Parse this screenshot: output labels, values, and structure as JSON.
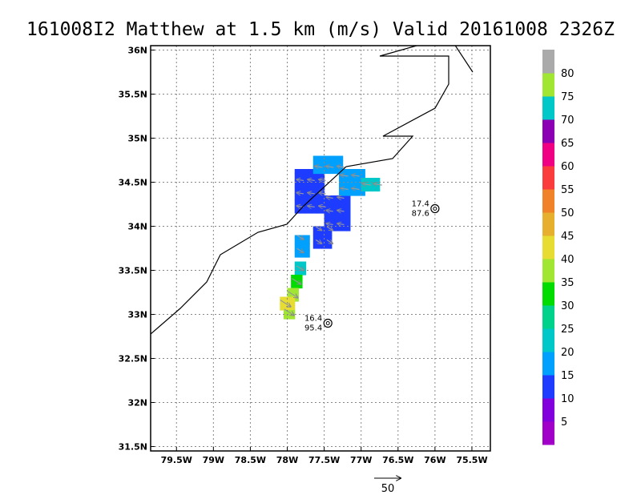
{
  "title": "161008I2 Matthew at 1.5 km (m/s) Valid 20161008 2326Z",
  "chart_data": {
    "type": "heatmap",
    "title": "161008I2 Matthew at 1.5 km (m/s) Valid 20161008 2326Z",
    "xlabel": "",
    "ylabel": "",
    "units": "m/s",
    "xlim": [
      -79.85,
      -75.25
    ],
    "ylim": [
      31.45,
      36.05
    ],
    "x_ticks": [
      -79.5,
      -79.0,
      -78.5,
      -78.0,
      -77.5,
      -77.0,
      -76.5,
      -76.0,
      -75.5
    ],
    "x_tick_labels": [
      "79.5W",
      "79W",
      "78.5W",
      "78W",
      "77.5W",
      "77W",
      "76.5W",
      "76W",
      "75.5W"
    ],
    "y_ticks": [
      31.5,
      32.0,
      32.5,
      33.0,
      33.5,
      34.0,
      34.5,
      35.0,
      35.5,
      36.0
    ],
    "y_tick_labels": [
      "31.5N",
      "32N",
      "32.5N",
      "33N",
      "33.5N",
      "34N",
      "34.5N",
      "35N",
      "35.5N",
      "36N"
    ],
    "grid": true,
    "colorbar": {
      "levels": [
        5,
        10,
        15,
        20,
        25,
        30,
        35,
        40,
        45,
        50,
        55,
        60,
        65,
        70,
        75,
        80
      ],
      "colors": [
        "#a000c8",
        "#8200dc",
        "#1e3cff",
        "#00a0ff",
        "#00c8c8",
        "#00d28c",
        "#00dc00",
        "#a0e632",
        "#e6dc32",
        "#e6af2d",
        "#f08228",
        "#fa3c3c",
        "#f00082",
        "#8c00b4",
        "#00c8c8",
        "#a0e632",
        "#aaaaaa"
      ],
      "labels": [
        "5",
        "10",
        "15",
        "20",
        "25",
        "30",
        "35",
        "40",
        "45",
        "50",
        "55",
        "60",
        "65",
        "70",
        "75",
        "80"
      ]
    },
    "storm_markers": [
      {
        "lon": -77.45,
        "lat": 32.9,
        "label_top": "16.4",
        "label_bottom": "95.4"
      },
      {
        "lon": -76.0,
        "lat": 34.2,
        "label_top": "17.4",
        "label_bottom": "87.6"
      }
    ],
    "reference_vector": {
      "value": "50",
      "units": "m/s"
    },
    "wind_field_patches": [
      {
        "lon_min": -77.9,
        "lon_max": -77.5,
        "lat_min": 34.15,
        "lat_max": 34.65,
        "speed": 12
      },
      {
        "lon_min": -77.5,
        "lon_max": -77.15,
        "lat_min": 33.95,
        "lat_max": 34.35,
        "speed": 11
      },
      {
        "lon_min": -77.65,
        "lon_max": -77.4,
        "lat_min": 33.75,
        "lat_max": 34.0,
        "speed": 11
      },
      {
        "lon_min": -77.3,
        "lon_max": -76.95,
        "lat_min": 34.35,
        "lat_max": 34.65,
        "speed": 17
      },
      {
        "lon_min": -77.65,
        "lon_max": -77.25,
        "lat_min": 34.6,
        "lat_max": 34.8,
        "speed": 17
      },
      {
        "lon_min": -77.0,
        "lon_max": -76.75,
        "lat_min": 34.4,
        "lat_max": 34.55,
        "speed": 22
      },
      {
        "lon_min": -77.9,
        "lon_max": -77.7,
        "lat_min": 33.65,
        "lat_max": 33.9,
        "speed": 17
      },
      {
        "lon_min": -77.9,
        "lon_max": -77.75,
        "lat_min": 33.45,
        "lat_max": 33.6,
        "speed": 22
      },
      {
        "lon_min": -77.95,
        "lon_max": -77.8,
        "lat_min": 33.3,
        "lat_max": 33.45,
        "speed": 32
      },
      {
        "lon_min": -78.0,
        "lon_max": -77.85,
        "lat_min": 33.15,
        "lat_max": 33.3,
        "speed": 38
      },
      {
        "lon_min": -78.1,
        "lon_max": -77.9,
        "lat_min": 33.05,
        "lat_max": 33.2,
        "speed": 42
      },
      {
        "lon_min": -78.05,
        "lon_max": -77.9,
        "lat_min": 32.95,
        "lat_max": 33.05,
        "speed": 38
      }
    ]
  }
}
